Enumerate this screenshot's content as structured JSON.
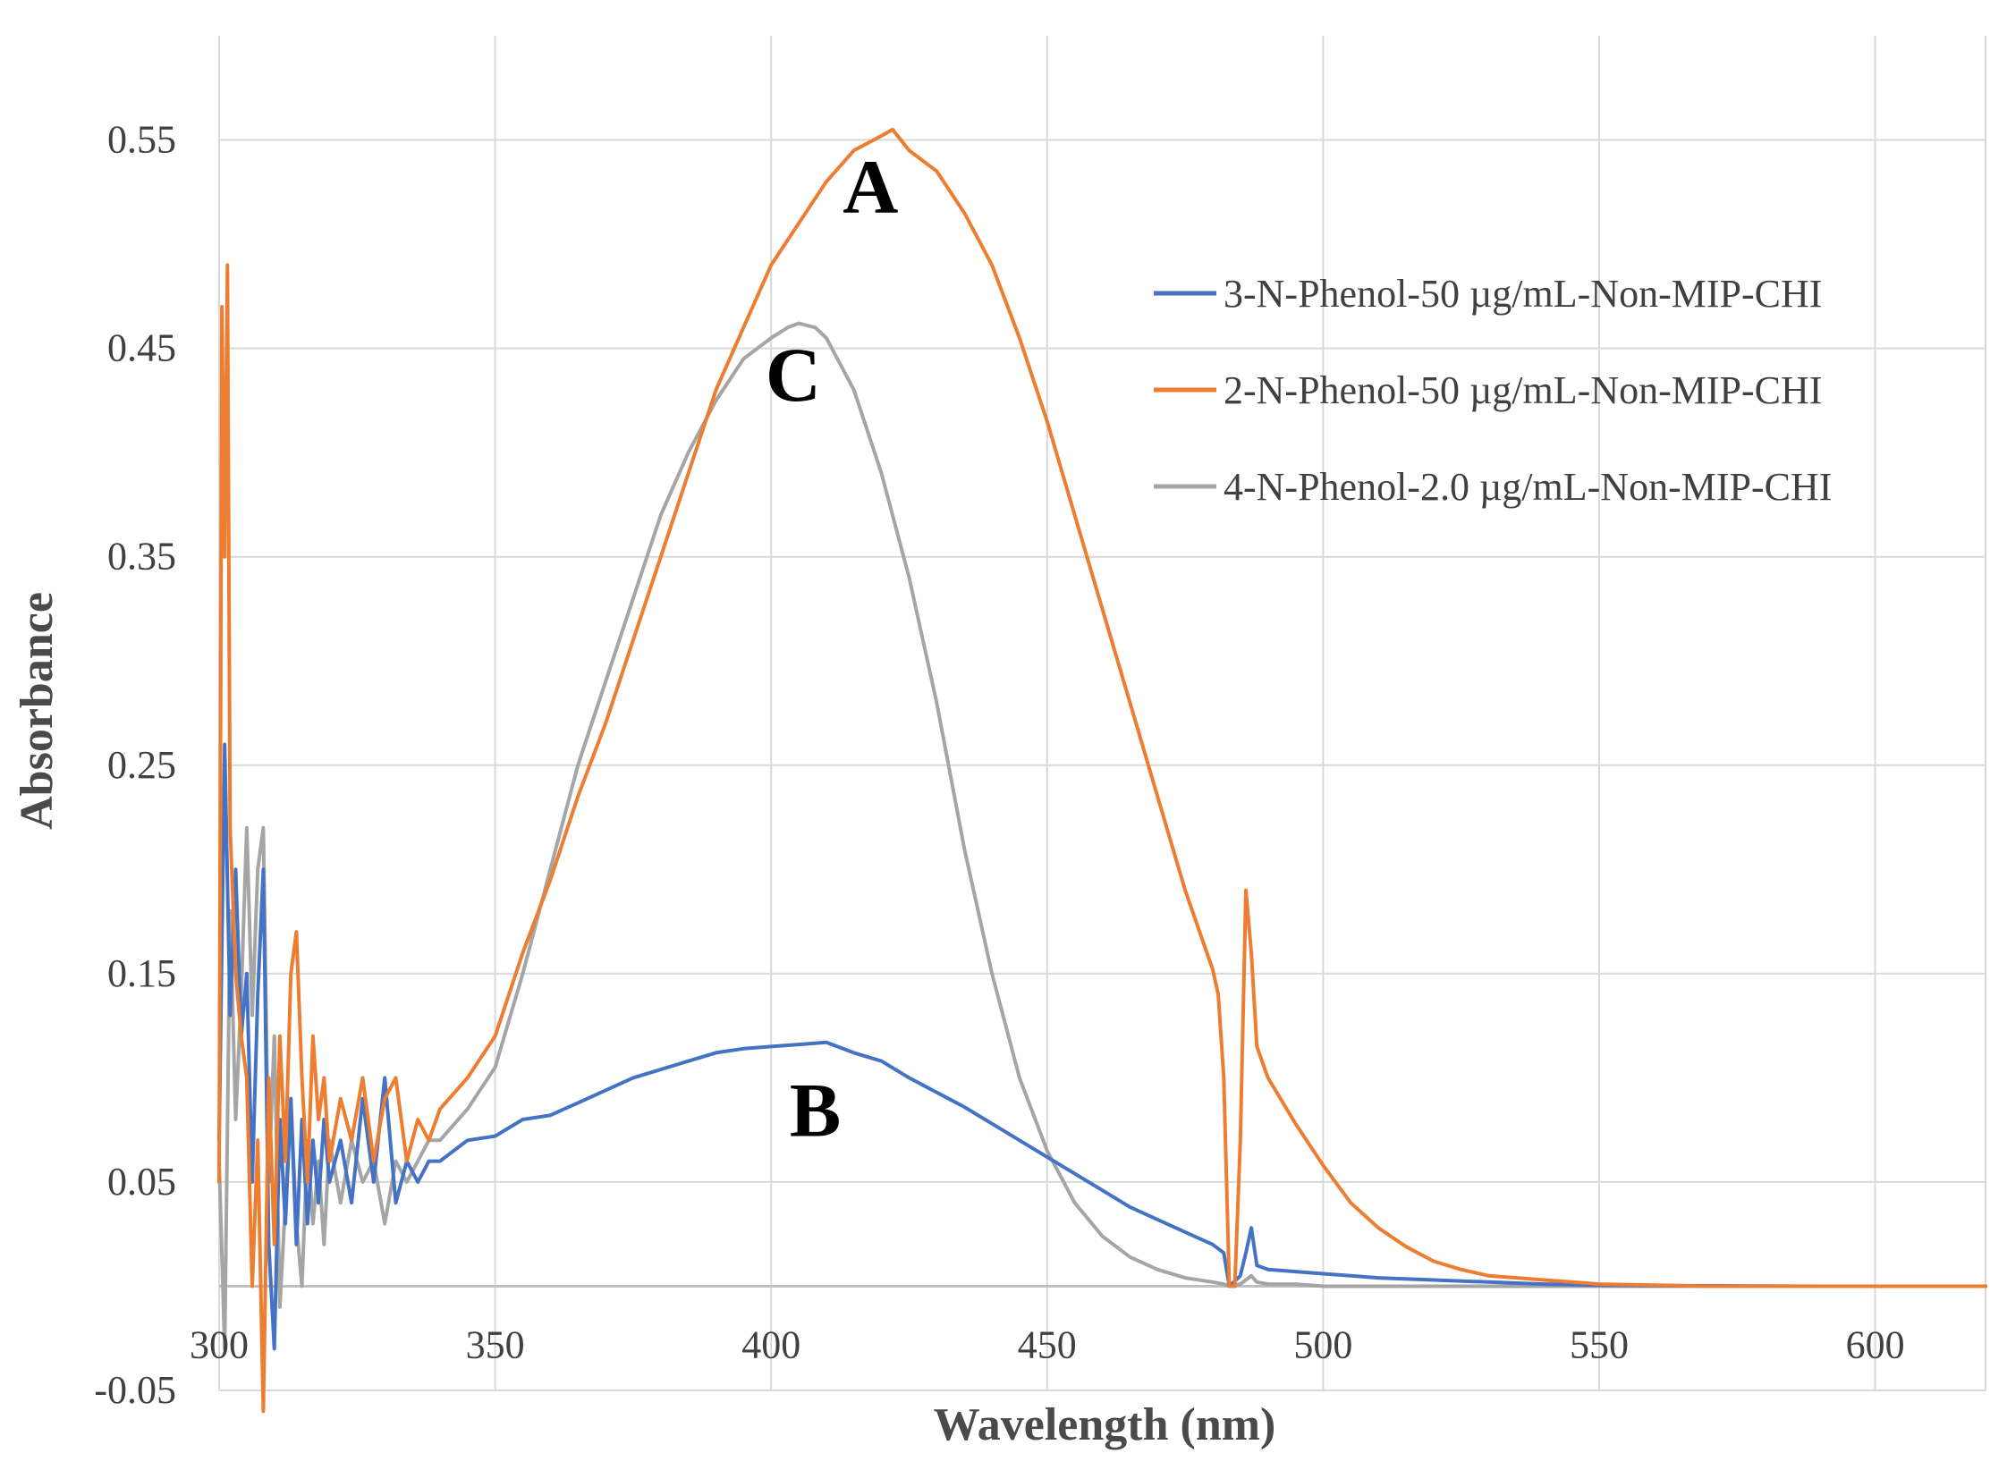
{
  "chart_data": {
    "type": "line",
    "xlabel": "Wavelength (nm)",
    "ylabel": "Absorbance",
    "xlim": [
      300,
      620
    ],
    "ylim": [
      -0.05,
      0.6
    ],
    "x_ticks": [
      300,
      350,
      400,
      450,
      500,
      550,
      600
    ],
    "y_ticks": [
      -0.05,
      0.05,
      0.15,
      0.25,
      0.35,
      0.45,
      0.55
    ],
    "x_tick_labels": [
      "300",
      "350",
      "400",
      "450",
      "500",
      "550",
      "600"
    ],
    "y_tick_labels": [
      "-0.05",
      "0.05",
      "0.15",
      "0.25",
      "0.35",
      "0.45",
      "0.55"
    ],
    "baseline_y": 0,
    "grid": true,
    "legend_position": "top-right",
    "series": [
      {
        "name": "3-N-Phenol-50 µg/mL-Non-MIP-CHI",
        "label": "B",
        "label_at": [
          408,
          0.072
        ],
        "color": "#4472c4",
        "x": [
          300,
          301,
          302,
          303,
          304,
          305,
          306,
          307,
          308,
          309,
          310,
          311,
          312,
          313,
          314,
          315,
          316,
          317,
          318,
          319,
          320,
          322,
          324,
          326,
          328,
          330,
          332,
          334,
          336,
          338,
          340,
          345,
          350,
          355,
          360,
          365,
          370,
          375,
          380,
          385,
          390,
          395,
          400,
          405,
          410,
          415,
          420,
          425,
          430,
          435,
          440,
          445,
          450,
          455,
          460,
          465,
          470,
          475,
          480,
          482,
          483,
          485,
          486,
          487,
          488,
          490,
          495,
          500,
          505,
          510,
          520,
          530,
          540,
          550,
          560,
          570,
          580,
          590,
          600,
          610,
          620
        ],
        "y": [
          0.07,
          0.26,
          0.13,
          0.2,
          0.12,
          0.15,
          0.05,
          0.14,
          0.2,
          0.02,
          -0.03,
          0.08,
          0.03,
          0.09,
          0.02,
          0.08,
          0.03,
          0.07,
          0.04,
          0.08,
          0.05,
          0.07,
          0.04,
          0.09,
          0.05,
          0.1,
          0.04,
          0.06,
          0.05,
          0.06,
          0.06,
          0.07,
          0.072,
          0.08,
          0.082,
          0.088,
          0.094,
          0.1,
          0.104,
          0.108,
          0.112,
          0.114,
          0.115,
          0.116,
          0.117,
          0.112,
          0.108,
          0.1,
          0.093,
          0.086,
          0.078,
          0.07,
          0.062,
          0.054,
          0.046,
          0.038,
          0.032,
          0.026,
          0.02,
          0.016,
          0.0,
          0.005,
          0.016,
          0.028,
          0.01,
          0.008,
          0.007,
          0.006,
          0.005,
          0.004,
          0.003,
          0.002,
          0.001,
          0.0005,
          0.0003,
          0.0002,
          0.0001,
          0.0,
          0.0,
          0.0,
          0.0
        ]
      },
      {
        "name": "2-N-Phenol-50 µg/mL-Non-MIP-CHI",
        "label": "A",
        "label_at": [
          418,
          0.515
        ],
        "color": "#ed7d31",
        "x": [
          300,
          300.5,
          301,
          301.5,
          302,
          303,
          304,
          305,
          306,
          307,
          308,
          309,
          310,
          311,
          312,
          313,
          314,
          315,
          316,
          317,
          318,
          319,
          320,
          322,
          324,
          326,
          328,
          330,
          332,
          334,
          336,
          338,
          340,
          345,
          350,
          355,
          360,
          365,
          370,
          375,
          380,
          385,
          390,
          395,
          400,
          405,
          410,
          415,
          420,
          422,
          425,
          430,
          435,
          440,
          445,
          450,
          455,
          460,
          465,
          470,
          475,
          480,
          481,
          482,
          483,
          484,
          485,
          486,
          487,
          488,
          490,
          495,
          500,
          505,
          510,
          515,
          520,
          525,
          530,
          540,
          550,
          560,
          570,
          580,
          590,
          600,
          610,
          620
        ],
        "y": [
          0.05,
          0.47,
          0.35,
          0.49,
          0.22,
          0.15,
          0.12,
          0.1,
          0.0,
          0.07,
          -0.06,
          0.1,
          0.02,
          0.12,
          0.06,
          0.15,
          0.17,
          0.1,
          0.05,
          0.12,
          0.08,
          0.1,
          0.06,
          0.09,
          0.07,
          0.1,
          0.06,
          0.09,
          0.1,
          0.06,
          0.08,
          0.07,
          0.085,
          0.1,
          0.12,
          0.16,
          0.195,
          0.235,
          0.27,
          0.31,
          0.35,
          0.39,
          0.43,
          0.46,
          0.49,
          0.51,
          0.53,
          0.545,
          0.552,
          0.555,
          0.545,
          0.535,
          0.515,
          0.49,
          0.455,
          0.415,
          0.37,
          0.325,
          0.28,
          0.235,
          0.19,
          0.152,
          0.14,
          0.1,
          0.0,
          0.0,
          0.07,
          0.19,
          0.16,
          0.115,
          0.1,
          0.078,
          0.058,
          0.04,
          0.028,
          0.019,
          0.012,
          0.008,
          0.005,
          0.003,
          0.001,
          0.0005,
          0.0,
          0.0,
          0.0,
          0.0,
          0.0,
          0.0
        ]
      },
      {
        "name": "4-N-Phenol-2.0 µg/mL-Non-MIP-CHI",
        "label": "C",
        "label_at": [
          404,
          0.425
        ],
        "color": "#a5a5a5",
        "x": [
          300,
          301,
          302,
          303,
          304,
          305,
          306,
          307,
          308,
          309,
          310,
          311,
          312,
          313,
          314,
          315,
          316,
          317,
          318,
          319,
          320,
          322,
          324,
          326,
          328,
          330,
          332,
          334,
          336,
          338,
          340,
          345,
          350,
          355,
          360,
          365,
          370,
          375,
          380,
          385,
          390,
          395,
          400,
          403,
          405,
          408,
          410,
          415,
          420,
          425,
          430,
          435,
          440,
          445,
          450,
          455,
          460,
          465,
          470,
          475,
          480,
          482,
          483,
          485,
          487,
          488,
          490,
          495,
          500,
          510,
          520,
          530,
          540,
          550,
          560,
          570,
          580,
          590,
          600,
          610,
          620
        ],
        "y": [
          0.06,
          -0.03,
          0.18,
          0.08,
          0.14,
          0.22,
          0.13,
          0.2,
          0.22,
          0.05,
          0.12,
          -0.01,
          0.04,
          0.09,
          0.03,
          0.0,
          0.07,
          0.03,
          0.06,
          0.02,
          0.07,
          0.04,
          0.07,
          0.05,
          0.06,
          0.03,
          0.06,
          0.05,
          0.06,
          0.07,
          0.07,
          0.085,
          0.105,
          0.15,
          0.2,
          0.25,
          0.29,
          0.33,
          0.37,
          0.4,
          0.425,
          0.445,
          0.455,
          0.46,
          0.462,
          0.46,
          0.455,
          0.43,
          0.39,
          0.34,
          0.28,
          0.21,
          0.15,
          0.1,
          0.065,
          0.04,
          0.024,
          0.014,
          0.008,
          0.004,
          0.002,
          0.001,
          0.0,
          0.001,
          0.005,
          0.002,
          0.001,
          0.001,
          0.0,
          0.0,
          0.0,
          0.0,
          0.0,
          0.0,
          0.0,
          0.0,
          0.0,
          0.0,
          0.0,
          0.0,
          0.0
        ]
      }
    ],
    "legend_order": [
      0,
      1,
      2
    ]
  },
  "colors": {
    "grid": "#d9d9d9",
    "baseline": "#bfbfbf"
  }
}
